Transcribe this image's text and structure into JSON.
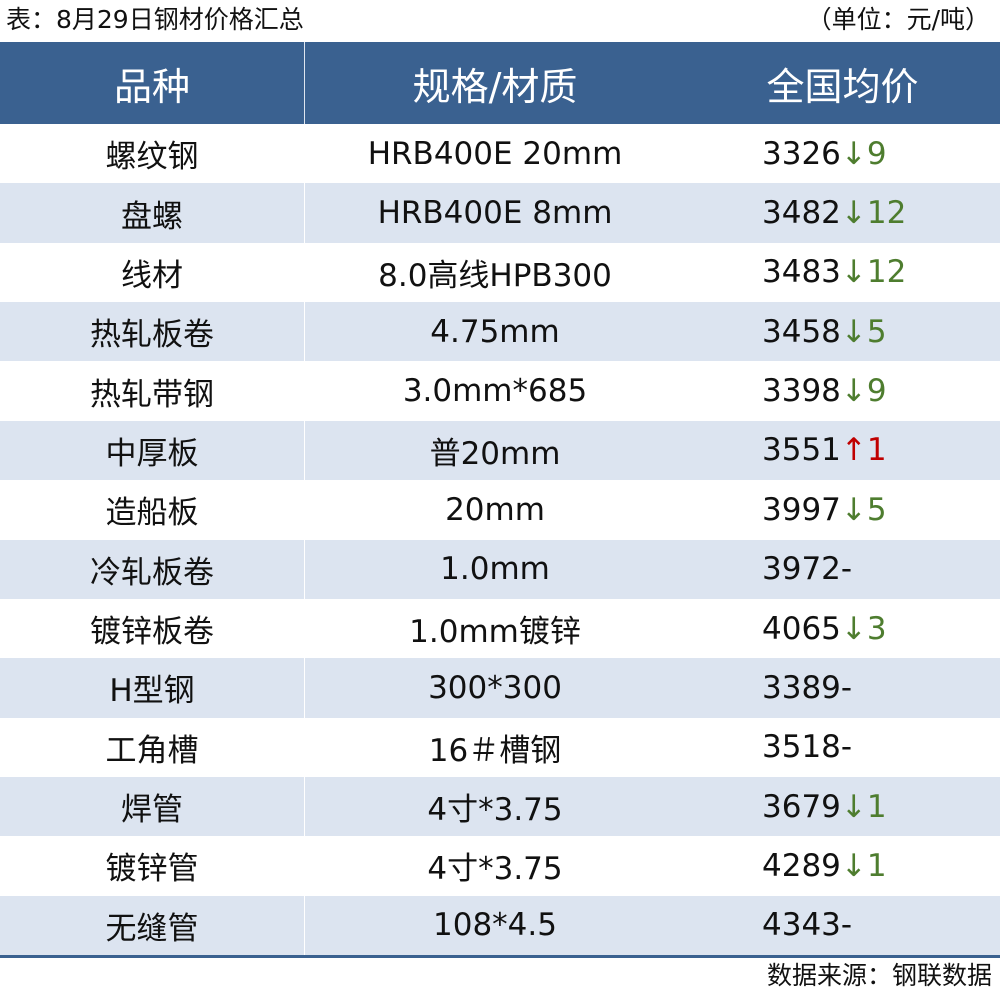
{
  "title": "表：8月29日钢材价格汇总",
  "unit": "（单位：元/吨）",
  "headers": [
    "品种",
    "规格/材质",
    "全国均价"
  ],
  "colors": {
    "header_bg": "#3a6190",
    "stripe": "#dce4f0",
    "down": "#4e7d2f",
    "up": "#c00000"
  },
  "rows": [
    {
      "name": "螺纹钢",
      "spec": "HRB400E 20mm",
      "price": "3326",
      "change": "↓9",
      "dir": "down"
    },
    {
      "name": "盘螺",
      "spec": "HRB400E 8mm",
      "price": "3482",
      "change": "↓12",
      "dir": "down"
    },
    {
      "name": "线材",
      "spec": "8.0高线HPB300",
      "price": "3483",
      "change": "↓12",
      "dir": "down"
    },
    {
      "name": "热轧板卷",
      "spec": "4.75mm",
      "price": "3458",
      "change": "↓5",
      "dir": "down"
    },
    {
      "name": "热轧带钢",
      "spec": "3.0mm*685",
      "price": "3398",
      "change": "↓9",
      "dir": "down"
    },
    {
      "name": "中厚板",
      "spec": "普20mm",
      "price": "3551",
      "change": "↑1",
      "dir": "up"
    },
    {
      "name": "造船板",
      "spec": "20mm",
      "price": "3997",
      "change": "↓5",
      "dir": "down"
    },
    {
      "name": "冷轧板卷",
      "spec": "1.0mm",
      "price": "3972",
      "change": " -",
      "dir": "flat"
    },
    {
      "name": "镀锌板卷",
      "spec": "1.0mm镀锌",
      "price": "4065",
      "change": "↓3",
      "dir": "down"
    },
    {
      "name": "H型钢",
      "spec": "300*300",
      "price": "3389",
      "change": " -",
      "dir": "flat"
    },
    {
      "name": "工角槽",
      "spec": "16＃槽钢",
      "price": "3518",
      "change": " -",
      "dir": "flat"
    },
    {
      "name": "焊管",
      "spec": "4寸*3.75",
      "price": "3679",
      "change": "↓1",
      "dir": "down"
    },
    {
      "name": "镀锌管",
      "spec": "4寸*3.75",
      "price": "4289",
      "change": "↓1",
      "dir": "down"
    },
    {
      "name": "无缝管",
      "spec": "108*4.5",
      "price": "4343",
      "change": " -",
      "dir": "flat"
    }
  ],
  "source": "数据来源：钢联数据"
}
